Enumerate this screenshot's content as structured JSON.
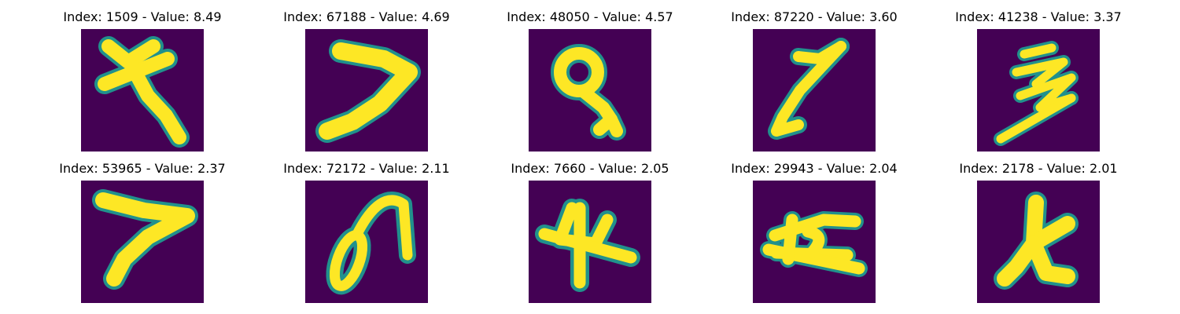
{
  "figure": {
    "background": "#ffffff",
    "colormap": {
      "background": "#440154",
      "mid": "#21918c",
      "peak": "#fde725"
    },
    "panels": [
      {
        "title": "Index: 1509 - Value: 8.49",
        "glyph": "cross-stroke"
      },
      {
        "title": "Index: 67188 - Value: 4.69",
        "glyph": "seven-stroke"
      },
      {
        "title": "Index: 48050 - Value: 4.57",
        "glyph": "loop-stroke"
      },
      {
        "title": "Index: 87220 - Value: 3.60",
        "glyph": "slanted-seven-stroke"
      },
      {
        "title": "Index: 41238 - Value: 3.37",
        "glyph": "zigzag-stroke"
      },
      {
        "title": "Index: 53965 - Value: 2.37",
        "glyph": "seven-stroke"
      },
      {
        "title": "Index: 72172 - Value: 2.11",
        "glyph": "hook-loop-stroke"
      },
      {
        "title": "Index: 7660 - Value: 2.05",
        "glyph": "four-stroke"
      },
      {
        "title": "Index: 29943 - Value: 2.04",
        "glyph": "crossed-box-stroke"
      },
      {
        "title": "Index: 2178 - Value: 2.01",
        "glyph": "y-stroke"
      }
    ]
  }
}
